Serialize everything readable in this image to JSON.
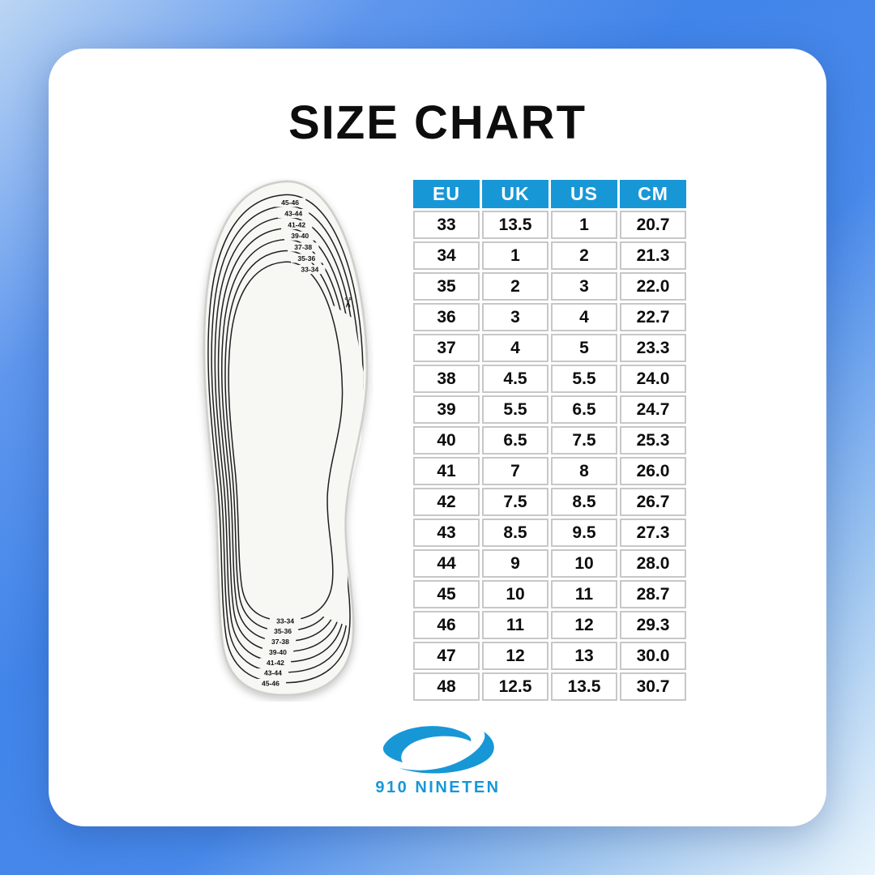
{
  "page": {
    "title": "SIZE CHART"
  },
  "colors": {
    "header_blue": "#1897d7",
    "logo_blue": "#1897d7",
    "background_blue": "#3d81e8",
    "background_light": "#b9d4f3",
    "card_white": "#ffffff",
    "insole_fill": "#f7f7f4",
    "table_border_gray": "#c7c7c7"
  },
  "chart_data": {
    "type": "table",
    "title": "SIZE CHART",
    "columns": [
      "EU",
      "UK",
      "US",
      "CM"
    ],
    "rows": [
      [
        "33",
        "13.5",
        "1",
        "20.7"
      ],
      [
        "34",
        "1",
        "2",
        "21.3"
      ],
      [
        "35",
        "2",
        "3",
        "22.0"
      ],
      [
        "36",
        "3",
        "4",
        "22.7"
      ],
      [
        "37",
        "4",
        "5",
        "23.3"
      ],
      [
        "38",
        "4.5",
        "5.5",
        "24.0"
      ],
      [
        "39",
        "5.5",
        "6.5",
        "24.7"
      ],
      [
        "40",
        "6.5",
        "7.5",
        "25.3"
      ],
      [
        "41",
        "7",
        "8",
        "26.0"
      ],
      [
        "42",
        "7.5",
        "8.5",
        "26.7"
      ],
      [
        "43",
        "8.5",
        "9.5",
        "27.3"
      ],
      [
        "44",
        "9",
        "10",
        "28.0"
      ],
      [
        "45",
        "10",
        "11",
        "28.7"
      ],
      [
        "46",
        "11",
        "12",
        "29.3"
      ],
      [
        "47",
        "12",
        "13",
        "30.0"
      ],
      [
        "48",
        "12.5",
        "13.5",
        "30.7"
      ]
    ]
  },
  "insole": {
    "top_labels": [
      "45-46",
      "43-44",
      "41-42",
      "39-40",
      "37-38",
      "35-36",
      "33-34"
    ],
    "bottom_labels": [
      "33-34",
      "35-36",
      "37-38",
      "39-40",
      "41-42",
      "43-44",
      "45-46"
    ],
    "scissors_glyph": "✂"
  },
  "brand": {
    "name": "910 NINETEN"
  }
}
